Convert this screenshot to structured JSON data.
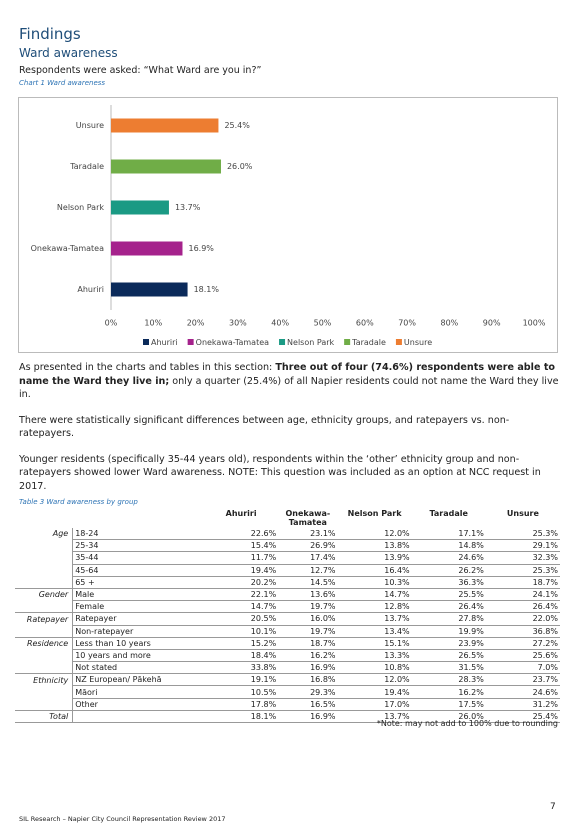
{
  "header": {
    "title": "Findings",
    "subtitle": "Ward awareness",
    "question": "Respondents were asked: “What Ward are you in?”"
  },
  "chart_data": {
    "type": "bar",
    "orientation": "horizontal",
    "caption": "Chart 1 Ward awareness",
    "categories": [
      "Unsure",
      "Taradale",
      "Nelson Park",
      "Onekawa-Tamatea",
      "Ahuriri"
    ],
    "values": [
      25.4,
      26.0,
      13.7,
      16.9,
      18.1
    ],
    "value_labels": [
      "25.4%",
      "26.0%",
      "13.7%",
      "16.9%",
      "18.1%"
    ],
    "colors": [
      "#ed7d31",
      "#70ad47",
      "#1b9a84",
      "#a5228c",
      "#0b2a5a"
    ],
    "xlim": [
      0,
      100
    ],
    "xticks": [
      {
        "value": 0,
        "label": "0%"
      },
      {
        "value": 10,
        "label": "10%"
      },
      {
        "value": 20,
        "label": "20%"
      },
      {
        "value": 30,
        "label": "30%"
      },
      {
        "value": 40,
        "label": "40%"
      },
      {
        "value": 50,
        "label": "50%"
      },
      {
        "value": 60,
        "label": "60%"
      },
      {
        "value": 70,
        "label": "70%"
      },
      {
        "value": 80,
        "label": "80%"
      },
      {
        "value": 90,
        "label": "90%"
      },
      {
        "value": 100,
        "label": "100%"
      }
    ],
    "legend": "bottom"
  },
  "paragraphs": [
    [
      "As presented in the charts and tables in this section: ",
      "Three out of four (74.6%) respondents were able to name the Ward they live in;",
      " only a quarter (25.4%) of all Napier residents could not name the Ward they live in."
    ],
    [
      "There were statistically significant differences between age, ethnicity groups, and ratepayers vs. non-ratepayers."
    ],
    [
      "Younger residents (specifically 35-44 years old), respondents within the ‘other’ ethnicity group and non-ratepayers showed lower Ward awareness. NOTE: This question was included as an option at NCC request in 2017."
    ]
  ],
  "table": {
    "caption": "Table 3 Ward awareness by group",
    "columns": [
      "Ahuriri",
      "Onekawa-Tamatea",
      "Nelson Park",
      "Taradale",
      "Unsure"
    ],
    "rows": [
      {
        "group": "Age",
        "label": "18-24",
        "cells": [
          "22.6%",
          "23.1%",
          "12.0%",
          "17.1%",
          "25.3%"
        ]
      },
      {
        "label": "25-34",
        "cells": [
          "15.4%",
          "26.9%",
          "13.8%",
          "14.8%",
          "29.1%"
        ]
      },
      {
        "label": "35-44",
        "cells": [
          "11.7%",
          "17.4%",
          "13.9%",
          "24.6%",
          "32.3%"
        ]
      },
      {
        "label": "45-64",
        "cells": [
          "19.4%",
          "12.7%",
          "16.4%",
          "26.2%",
          "25.3%"
        ]
      },
      {
        "label": "65 +",
        "cells": [
          "20.2%",
          "14.5%",
          "10.3%",
          "36.3%",
          "18.7%"
        ]
      },
      {
        "group": "Gender",
        "label": "Male",
        "cells": [
          "22.1%",
          "13.6%",
          "14.7%",
          "25.5%",
          "24.1%"
        ]
      },
      {
        "label": "Female",
        "cells": [
          "14.7%",
          "19.7%",
          "12.8%",
          "26.4%",
          "26.4%"
        ]
      },
      {
        "group": "Ratepayer",
        "label": "Ratepayer",
        "cells": [
          "20.5%",
          "16.0%",
          "13.7%",
          "27.8%",
          "22.0%"
        ]
      },
      {
        "label": "Non-ratepayer",
        "cells": [
          "10.1%",
          "19.7%",
          "13.4%",
          "19.9%",
          "36.8%"
        ]
      },
      {
        "group": "Residence",
        "label": "Less than 10 years",
        "cells": [
          "15.2%",
          "18.7%",
          "15.1%",
          "23.9%",
          "27.2%"
        ]
      },
      {
        "label": "10 years and more",
        "cells": [
          "18.4%",
          "16.2%",
          "13.3%",
          "26.5%",
          "25.6%"
        ]
      },
      {
        "label": "Not stated",
        "cells": [
          "33.8%",
          "16.9%",
          "10.8%",
          "31.5%",
          "7.0%"
        ]
      },
      {
        "group": "Ethnicity",
        "label": "NZ European/ Pākehā",
        "cells": [
          "19.1%",
          "16.8%",
          "12.0%",
          "28.3%",
          "23.7%"
        ]
      },
      {
        "label": "Māori",
        "cells": [
          "10.5%",
          "29.3%",
          "19.4%",
          "16.2%",
          "24.6%"
        ]
      },
      {
        "label": "Other",
        "cells": [
          "17.8%",
          "16.5%",
          "17.0%",
          "17.5%",
          "31.2%"
        ]
      },
      {
        "group": "Total",
        "cells": [
          "18.1%",
          "16.9%",
          "13.7%",
          "26.0%",
          "25.4%"
        ]
      }
    ],
    "note": "*Note: may not add to 100% due to rounding"
  },
  "footer": {
    "source": "SIL Research – Napier City Council Representation Review 2017",
    "page": "7"
  }
}
